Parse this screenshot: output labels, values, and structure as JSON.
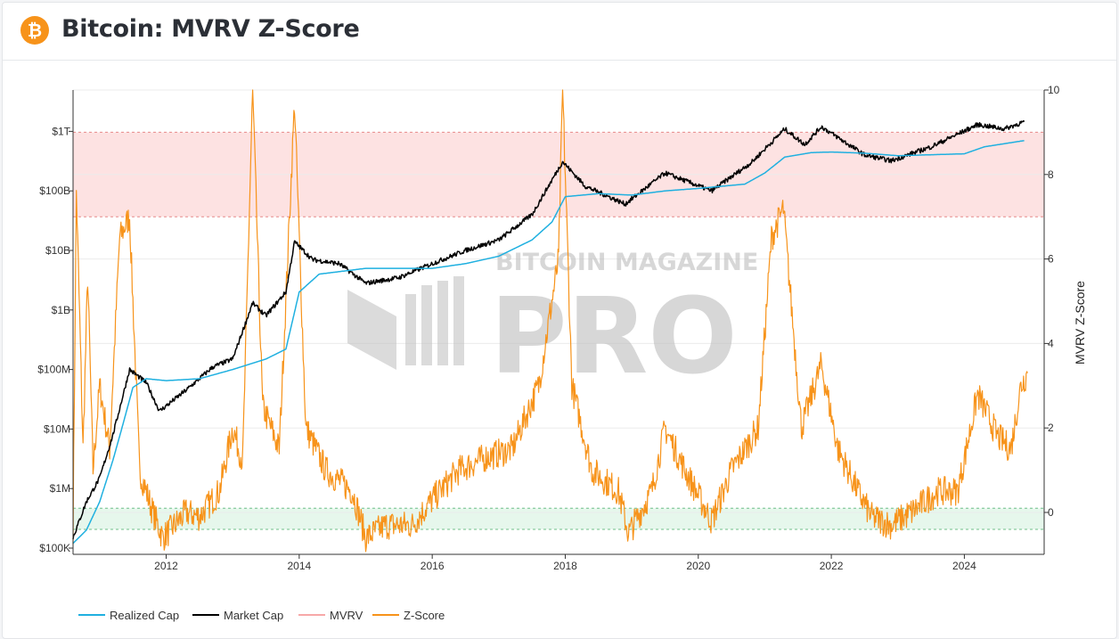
{
  "header": {
    "title": "Bitcoin: MVRV Z-Score",
    "logo_glyph": "₿",
    "logo_icon": "bitcoin-logo-icon"
  },
  "watermark": {
    "line1": "BITCOIN MAGAZINE",
    "line2": "PRO"
  },
  "colors": {
    "realized_cap": "#1fb0e0",
    "market_cap": "#000000",
    "mvrv": "#f7a8a8",
    "zscore": "#f7931a",
    "red_band": "#fde2e2",
    "green_band": "#e6f7ec"
  },
  "chart_data": {
    "type": "line",
    "x_ticks": [
      "2012",
      "2014",
      "2016",
      "2018",
      "2020",
      "2022",
      "2024"
    ],
    "y_left": {
      "scale": "log",
      "ticks": [
        "$100K",
        "$1M",
        "$10M",
        "$100M",
        "$1B",
        "$10B",
        "$100B",
        "$1T"
      ],
      "range": [
        100000,
        5000000000000
      ]
    },
    "y_right": {
      "label": "MVRV Z-Score",
      "ticks": [
        "0",
        "2",
        "4",
        "6",
        "8",
        "10"
      ],
      "range": [
        -1,
        10
      ]
    },
    "bands": [
      {
        "name": "red",
        "from": 7,
        "to": 9
      },
      {
        "name": "green",
        "from": -0.4,
        "to": 0.1
      }
    ],
    "legend": [
      "Realized Cap",
      "Market Cap",
      "MVRV",
      "Z-Score"
    ],
    "series": [
      {
        "name": "Realized Cap",
        "axis": "left",
        "points": [
          [
            2010.6,
            120000
          ],
          [
            2010.8,
            200000
          ],
          [
            2011.0,
            600000
          ],
          [
            2011.2,
            3000000
          ],
          [
            2011.35,
            12000000
          ],
          [
            2011.5,
            50000000
          ],
          [
            2011.7,
            70000000
          ],
          [
            2012.0,
            65000000
          ],
          [
            2012.5,
            70000000
          ],
          [
            2013.0,
            100000000
          ],
          [
            2013.5,
            150000000
          ],
          [
            2013.8,
            220000000
          ],
          [
            2014.0,
            2000000000
          ],
          [
            2014.3,
            4000000000
          ],
          [
            2015.0,
            5000000000
          ],
          [
            2016.0,
            5000000000
          ],
          [
            2016.5,
            6000000000
          ],
          [
            2017.0,
            8000000000
          ],
          [
            2017.5,
            15000000000
          ],
          [
            2017.8,
            30000000000
          ],
          [
            2018.0,
            80000000000
          ],
          [
            2018.5,
            90000000000
          ],
          [
            2019.0,
            85000000000
          ],
          [
            2019.5,
            100000000000
          ],
          [
            2020.0,
            110000000000
          ],
          [
            2020.7,
            130000000000
          ],
          [
            2021.0,
            200000000000
          ],
          [
            2021.3,
            370000000000
          ],
          [
            2021.7,
            440000000000
          ],
          [
            2022.0,
            450000000000
          ],
          [
            2022.5,
            430000000000
          ],
          [
            2023.0,
            390000000000
          ],
          [
            2024.0,
            420000000000
          ],
          [
            2024.3,
            550000000000
          ],
          [
            2024.9,
            700000000000
          ]
        ]
      },
      {
        "name": "Market Cap",
        "axis": "left",
        "points": [
          [
            2010.6,
            150000
          ],
          [
            2010.8,
            600000
          ],
          [
            2011.0,
            1500000
          ],
          [
            2011.2,
            8000000
          ],
          [
            2011.45,
            100000000
          ],
          [
            2011.7,
            60000000
          ],
          [
            2011.9,
            20000000
          ],
          [
            2012.3,
            45000000
          ],
          [
            2012.7,
            110000000
          ],
          [
            2013.0,
            150000000
          ],
          [
            2013.3,
            1300000000
          ],
          [
            2013.5,
            800000000
          ],
          [
            2013.8,
            2000000000
          ],
          [
            2013.93,
            14000000000
          ],
          [
            2014.2,
            7000000000
          ],
          [
            2014.6,
            6000000000
          ],
          [
            2015.0,
            2800000000
          ],
          [
            2015.5,
            3500000000
          ],
          [
            2016.0,
            6000000000
          ],
          [
            2016.5,
            10000000000
          ],
          [
            2017.0,
            15000000000
          ],
          [
            2017.5,
            40000000000
          ],
          [
            2017.96,
            310000000000
          ],
          [
            2018.3,
            120000000000
          ],
          [
            2018.9,
            60000000000
          ],
          [
            2019.5,
            200000000000
          ],
          [
            2020.2,
            100000000000
          ],
          [
            2020.8,
            300000000000
          ],
          [
            2021.3,
            1100000000000
          ],
          [
            2021.6,
            600000000000
          ],
          [
            2021.85,
            1200000000000
          ],
          [
            2022.5,
            400000000000
          ],
          [
            2022.9,
            320000000000
          ],
          [
            2023.5,
            550000000000
          ],
          [
            2024.2,
            1300000000000
          ],
          [
            2024.6,
            1100000000000
          ],
          [
            2024.9,
            1450000000000
          ]
        ]
      },
      {
        "name": "Z-Score",
        "axis": "right",
        "points": [
          [
            2010.6,
            -0.4
          ],
          [
            2010.65,
            7.6
          ],
          [
            2010.75,
            1.5
          ],
          [
            2010.82,
            5.6
          ],
          [
            2010.9,
            1.0
          ],
          [
            2011.0,
            3.0
          ],
          [
            2011.15,
            1.5
          ],
          [
            2011.3,
            6.5
          ],
          [
            2011.45,
            7.0
          ],
          [
            2011.6,
            1.0
          ],
          [
            2011.8,
            0.0
          ],
          [
            2011.95,
            -0.6
          ],
          [
            2012.3,
            0.0
          ],
          [
            2012.5,
            -0.1
          ],
          [
            2012.8,
            0.5
          ],
          [
            2013.0,
            2.0
          ],
          [
            2013.15,
            1.2
          ],
          [
            2013.3,
            10.0
          ],
          [
            2013.45,
            2.5
          ],
          [
            2013.7,
            1.5
          ],
          [
            2013.93,
            9.7
          ],
          [
            2014.1,
            2.0
          ],
          [
            2014.4,
            1.0
          ],
          [
            2014.8,
            0.5
          ],
          [
            2015.0,
            -0.6
          ],
          [
            2015.3,
            -0.3
          ],
          [
            2015.7,
            -0.3
          ],
          [
            2016.0,
            0.3
          ],
          [
            2016.4,
            1.0
          ],
          [
            2016.8,
            1.3
          ],
          [
            2017.2,
            1.5
          ],
          [
            2017.6,
            3.0
          ],
          [
            2017.9,
            6.0
          ],
          [
            2017.96,
            10.0
          ],
          [
            2018.1,
            3.0
          ],
          [
            2018.4,
            1.0
          ],
          [
            2018.8,
            0.5
          ],
          [
            2018.95,
            -0.5
          ],
          [
            2019.3,
            0.5
          ],
          [
            2019.5,
            2.0
          ],
          [
            2019.8,
            1.0
          ],
          [
            2020.2,
            -0.2
          ],
          [
            2020.5,
            1.0
          ],
          [
            2020.9,
            2.0
          ],
          [
            2021.1,
            6.5
          ],
          [
            2021.28,
            7.2
          ],
          [
            2021.55,
            2.0
          ],
          [
            2021.85,
            3.5
          ],
          [
            2022.1,
            1.5
          ],
          [
            2022.4,
            0.5
          ],
          [
            2022.6,
            -0.1
          ],
          [
            2022.9,
            -0.3
          ],
          [
            2023.2,
            0.0
          ],
          [
            2023.6,
            0.5
          ],
          [
            2023.9,
            0.5
          ],
          [
            2024.2,
            2.8
          ],
          [
            2024.5,
            1.8
          ],
          [
            2024.7,
            1.5
          ],
          [
            2024.85,
            3.0
          ],
          [
            2024.95,
            3.3
          ]
        ]
      }
    ]
  }
}
